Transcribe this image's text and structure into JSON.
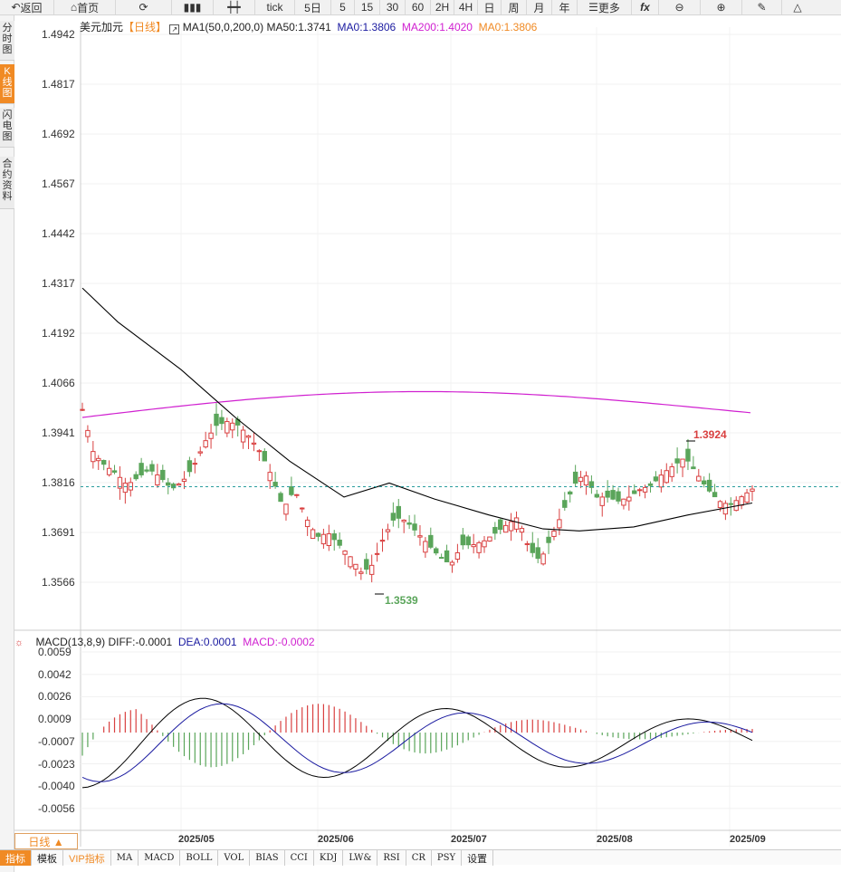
{
  "toolbar": {
    "back": "返回",
    "home": "首页",
    "tick": "tick",
    "five_day": "5日",
    "periods": [
      "5",
      "15",
      "30",
      "60",
      "2H",
      "4H",
      "日",
      "周",
      "月",
      "年"
    ],
    "more": "更多",
    "fx": "fx"
  },
  "sidebar": {
    "tabs": [
      "分时图",
      "K线图",
      "闪电图",
      "合约资料"
    ],
    "active": "K线图"
  },
  "main_chart": {
    "symbol": "美元加元",
    "period_tag": "【日线】",
    "ma1": "MA1(50,0,200,0)",
    "ma50": "MA50:1.3741",
    "ma0a": "MA0:1.3806",
    "ma200": "MA200:1.4020",
    "ma0b": "MA0:1.3806",
    "y_ticks": [
      "1.4942",
      "1.4817",
      "1.4692",
      "1.4567",
      "1.4442",
      "1.4317",
      "1.4192",
      "1.4066",
      "1.3941",
      "1.3816",
      "1.3691",
      "1.3566"
    ],
    "high_label": "1.3924",
    "low_label": "1.3539"
  },
  "macd": {
    "title": "MACD(13,8,9)",
    "diff": "DIFF:-0.0001",
    "dea": "DEA:0.0001",
    "macd": "MACD:-0.0002",
    "y_ticks": [
      "0.0059",
      "0.0042",
      "0.0026",
      "0.0009",
      "-0.0007",
      "-0.0023",
      "-0.0040",
      "-0.0056"
    ]
  },
  "x_axis": [
    "2025/05",
    "2025/06",
    "2025/07",
    "2025/08",
    "2025/09"
  ],
  "period_button": "日线 ▲",
  "bottom_tabs": [
    "指标",
    "模板",
    "VIP指标",
    "MA",
    "MACD",
    "BOLL",
    "VOL",
    "BIAS",
    "CCI",
    "KDJ",
    "LW&",
    "RSI",
    "CR",
    "PSY",
    "设置"
  ],
  "colors": {
    "up": "#d94040",
    "down": "#5aa55a",
    "ma50": "#000000",
    "ma200": "#d020d0",
    "accent": "#f08a24",
    "dea": "#1a1aa0"
  }
}
